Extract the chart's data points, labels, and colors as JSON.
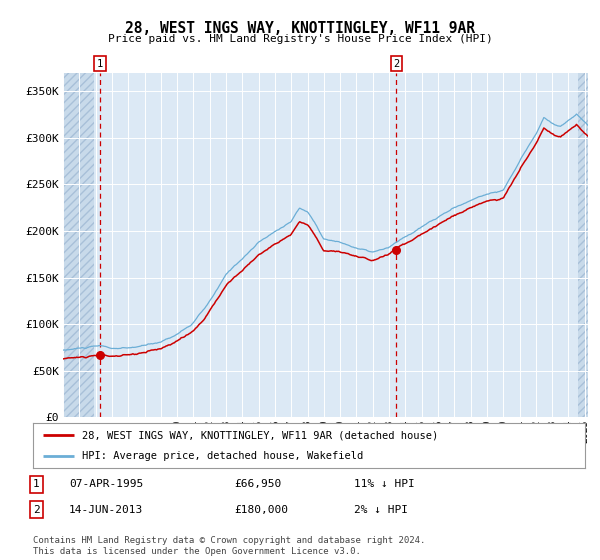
{
  "title": "28, WEST INGS WAY, KNOTTINGLEY, WF11 9AR",
  "subtitle": "Price paid vs. HM Land Registry's House Price Index (HPI)",
  "ylim": [
    0,
    370000
  ],
  "yticks": [
    0,
    50000,
    100000,
    150000,
    200000,
    250000,
    300000,
    350000
  ],
  "ytick_labels": [
    "£0",
    "£50K",
    "£100K",
    "£150K",
    "£200K",
    "£250K",
    "£300K",
    "£350K"
  ],
  "transaction1": {
    "date_label": "07-APR-1995",
    "price": 66950,
    "year": 1995.27,
    "label": "11% ↓ HPI",
    "marker": 1
  },
  "transaction2": {
    "date_label": "14-JUN-2013",
    "price": 180000,
    "year": 2013.45,
    "label": "2% ↓ HPI",
    "marker": 2
  },
  "legend_line1": "28, WEST INGS WAY, KNOTTINGLEY, WF11 9AR (detached house)",
  "legend_line2": "HPI: Average price, detached house, Wakefield",
  "footer": "Contains HM Land Registry data © Crown copyright and database right 2024.\nThis data is licensed under the Open Government Licence v3.0.",
  "hpi_color": "#6baed6",
  "price_color": "#cc0000",
  "bg_color": "#dce9f5",
  "grid_color": "#ffffff",
  "vline_color": "#cc0000",
  "xmin": 1993.0,
  "xmax": 2025.2,
  "hatch_left_end": 1994.9,
  "hatch_right_start": 2024.6
}
